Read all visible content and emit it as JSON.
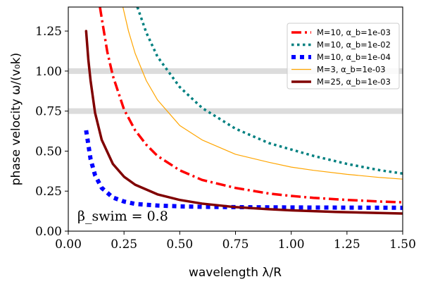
{
  "chart_data": {
    "type": "line",
    "xlabel": "wavelength λ/R",
    "ylabel": "phase velocity ω/(v₀k)",
    "xlim": [
      0.0,
      1.5
    ],
    "ylim": [
      0.0,
      1.4
    ],
    "xticks": [
      0.0,
      0.25,
      0.5,
      0.75,
      1.0,
      1.25,
      1.5
    ],
    "xtick_labels": [
      "0.00",
      "0.25",
      "0.50",
      "0.75",
      "1.00",
      "1.25",
      "1.50"
    ],
    "yticks": [
      0.0,
      0.25,
      0.5,
      0.75,
      1.0,
      1.25
    ],
    "ytick_labels": [
      "0.00",
      "0.25",
      "0.50",
      "0.75",
      "1.00",
      "1.25"
    ],
    "grid": false,
    "legend_position": "top-right",
    "reference_bands": [
      {
        "y": 1.0,
        "color": "#dcdcdc"
      },
      {
        "y": 0.75,
        "color": "#dcdcdc"
      }
    ],
    "annotation": "β_swim = 0.8",
    "series": [
      {
        "name": "M=10, α_b=1e-03",
        "color": "#ff0000",
        "style": "dashdot",
        "x": [
          0.142,
          0.15,
          0.175,
          0.2,
          0.25,
          0.3,
          0.35,
          0.4,
          0.5,
          0.6,
          0.75,
          0.9,
          1.0,
          1.1,
          1.25,
          1.4,
          1.5
        ],
        "y": [
          1.4,
          1.33,
          1.12,
          0.97,
          0.76,
          0.63,
          0.54,
          0.47,
          0.38,
          0.32,
          0.27,
          0.235,
          0.22,
          0.208,
          0.195,
          0.185,
          0.18
        ]
      },
      {
        "name": "M=10, α_b=1e-02",
        "color": "#008080",
        "style": "dotted",
        "x": [
          0.31,
          0.35,
          0.4,
          0.5,
          0.6,
          0.75,
          0.9,
          1.0,
          1.1,
          1.25,
          1.4,
          1.5
        ],
        "y": [
          1.4,
          1.24,
          1.09,
          0.9,
          0.77,
          0.64,
          0.55,
          0.51,
          0.47,
          0.42,
          0.38,
          0.36
        ]
      },
      {
        "name": "M=10, α_b=1e-04",
        "color": "#0000ff",
        "style": "dotted-thick",
        "x": [
          0.08,
          0.1,
          0.12,
          0.15,
          0.2,
          0.25,
          0.3,
          0.4,
          0.5,
          0.6,
          0.75,
          1.0,
          1.25,
          1.5
        ],
        "y": [
          0.63,
          0.45,
          0.35,
          0.27,
          0.21,
          0.185,
          0.17,
          0.16,
          0.155,
          0.152,
          0.15,
          0.148,
          0.147,
          0.146
        ]
      },
      {
        "name": "M=3, α_b=1e-03",
        "color": "#ffa500",
        "style": "solid-thin",
        "x": [
          0.245,
          0.27,
          0.3,
          0.35,
          0.4,
          0.5,
          0.6,
          0.75,
          0.9,
          1.0,
          1.1,
          1.25,
          1.4,
          1.5
        ],
        "y": [
          1.4,
          1.25,
          1.11,
          0.94,
          0.82,
          0.66,
          0.57,
          0.48,
          0.43,
          0.4,
          0.38,
          0.355,
          0.335,
          0.325
        ]
      },
      {
        "name": "M=25, α_b=1e-03",
        "color": "#800000",
        "style": "solid-thick",
        "x": [
          0.08,
          0.09,
          0.1,
          0.12,
          0.15,
          0.2,
          0.25,
          0.3,
          0.4,
          0.5,
          0.6,
          0.75,
          0.9,
          1.0,
          1.2,
          1.5
        ],
        "y": [
          1.25,
          1.07,
          0.94,
          0.74,
          0.57,
          0.42,
          0.34,
          0.29,
          0.23,
          0.195,
          0.172,
          0.15,
          0.137,
          0.13,
          0.12,
          0.11
        ]
      }
    ]
  }
}
